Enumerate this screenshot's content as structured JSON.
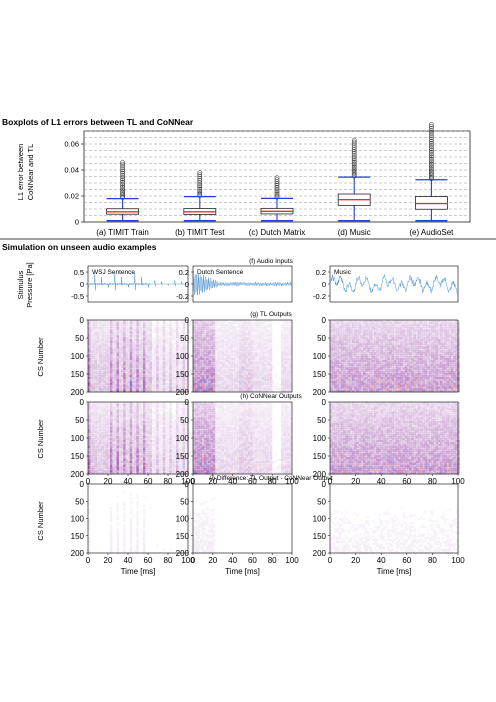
{
  "top": {
    "title": "Boxplots of L1 errors between TL and CoNNear",
    "ylabel_lines": [
      "L1 error between",
      "CoNNear and TL"
    ],
    "chart_data": {
      "type": "box",
      "title": "Boxplots of L1 errors between TL and CoNNear",
      "categories": [
        "(a) TIMIT Train",
        "(b) TIMIT Test",
        "(c) Dutch Matrix",
        "(d) Music",
        "(e) AudioSet"
      ],
      "ylim": [
        0,
        0.07
      ],
      "yticks": [
        0,
        0.02,
        0.04,
        0.06
      ],
      "ytick_labels": [
        "0",
        "0.02",
        "0.04",
        "0.06"
      ],
      "boxes": [
        {
          "wlo": 0.001,
          "q1": 0.006,
          "median": 0.0078,
          "q3": 0.0102,
          "whi": 0.018,
          "flier_max": 0.046
        },
        {
          "wlo": 0.001,
          "q1": 0.0058,
          "median": 0.0078,
          "q3": 0.0103,
          "whi": 0.0195,
          "flier_max": 0.038
        },
        {
          "wlo": 0.001,
          "q1": 0.0062,
          "median": 0.0082,
          "q3": 0.0105,
          "whi": 0.0182,
          "flier_max": 0.034
        },
        {
          "wlo": 0.001,
          "q1": 0.0128,
          "median": 0.0172,
          "q3": 0.0215,
          "whi": 0.0345,
          "flier_max": 0.063
        },
        {
          "wlo": 0.001,
          "q1": 0.0098,
          "median": 0.0142,
          "q3": 0.0196,
          "whi": 0.0325,
          "flier_max": 0.075
        }
      ],
      "grid": "horizontal dashed"
    }
  },
  "bottom": {
    "title": "Simulation on unseen audio examples",
    "row_titles": [
      "(f) Audio Inputs",
      "(g) TL Outputs",
      "(h) CoNNear Outputs",
      "(i) Difference: TL Output - CoNNear Output"
    ],
    "wave_ylabel_lines": [
      "Stimulus",
      "Pressure [Pa]"
    ],
    "map_ylabel": "CS Number",
    "xlabel": "Time [ms]",
    "xticks": [
      "0",
      "20",
      "40",
      "60",
      "80",
      "100"
    ],
    "cs_ticks": [
      "0",
      "50",
      "100",
      "150",
      "200"
    ],
    "columns": [
      {
        "label": "WSJ Sentence",
        "yticks": [
          "0.5",
          "0",
          "-0.5"
        ]
      },
      {
        "label": "Dutch Sentence",
        "yticks": [
          "0.2",
          "0",
          "-0.2"
        ]
      },
      {
        "label": "Music",
        "yticks": [
          "0.2",
          "0",
          "-0.2"
        ]
      }
    ]
  },
  "colors": {
    "box_edge": "#222222",
    "whisker": "#1f3fd8",
    "median": "#e5322d",
    "wave": "#4f93d6",
    "heat": "#8a2a9c",
    "heat_hot": "#e0302a",
    "heat_cold": "#2a46d8"
  }
}
